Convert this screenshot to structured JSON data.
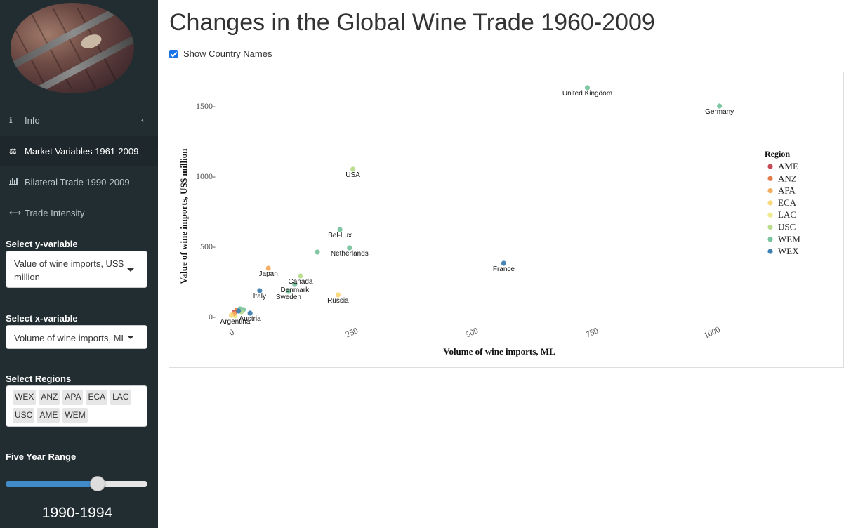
{
  "app": {
    "title": "Changes in the Global Wine Trade 1960-2009"
  },
  "sidebar": {
    "menu": [
      {
        "label": "Info",
        "icon": "info-icon",
        "glyph": "ℹ",
        "has_chevron": true,
        "chevron": "‹"
      },
      {
        "label": "Market Variables 1961-2009",
        "icon": "balance-scale-icon",
        "glyph": "⚖",
        "active": true
      },
      {
        "label": "Bilateral Trade 1990-2009",
        "icon": "bar-chart-icon",
        "glyph": "📊"
      },
      {
        "label": "Trade Intensity",
        "icon": "arrows-h-icon",
        "glyph": "⟷"
      }
    ],
    "y_variable": {
      "label": "Select y-variable",
      "value": "Value of wine imports, US$ million"
    },
    "x_variable": {
      "label": "Select x-variable",
      "value": "Volume of wine imports, ML"
    },
    "regions": {
      "label": "Select Regions",
      "selected": [
        "WEX",
        "ANZ",
        "APA",
        "ECA",
        "LAC",
        "USC",
        "AME",
        "WEM"
      ]
    },
    "year_range": {
      "label": "Five Year Range",
      "value": "1990-1994",
      "position_fraction": 0.65
    }
  },
  "main": {
    "show_country_names": {
      "label": "Show Country Names",
      "checked": true
    }
  },
  "colors": {
    "AME": "#c54b55",
    "ANZ": "#e57a4a",
    "APA": "#f4ac5e",
    "ECA": "#fad77a",
    "LAC": "#f0ea8f",
    "USC": "#b9dc8c",
    "WEM": "#78c39e",
    "WEX": "#3f80b2",
    "accent": "#428bca",
    "sidebar_bg": "#222d32"
  },
  "chart_data": {
    "type": "scatter",
    "xlabel": "Volume of wine imports, ML",
    "ylabel": "Value of wine imports, US$ million",
    "xlim": [
      -30,
      1110
    ],
    "ylim": [
      -60,
      1640
    ],
    "x_ticks": [
      0,
      250,
      500,
      750,
      1000
    ],
    "x_tick_labels": [
      "0",
      "250",
      "500",
      "750",
      "1000"
    ],
    "y_ticks": [
      0,
      500,
      1000,
      1500
    ],
    "y_tick_labels": [
      "0-",
      "500-",
      "1000-",
      "1500-"
    ],
    "legend": {
      "title": "Region",
      "position": "right",
      "entries": [
        "AME",
        "ANZ",
        "APA",
        "ECA",
        "LAC",
        "USC",
        "WEM",
        "WEX"
      ]
    },
    "points": [
      {
        "label": "United Kingdom",
        "region": "WEM",
        "x": 738,
        "y": 1630
      },
      {
        "label": "Germany",
        "region": "WEM",
        "x": 1013,
        "y": 1500
      },
      {
        "label": "USA",
        "region": "USC",
        "x": 250,
        "y": 1050
      },
      {
        "label": "Bel-Lux",
        "region": "WEM",
        "x": 223,
        "y": 620
      },
      {
        "label": "Netherlands",
        "region": "WEM",
        "x": 243,
        "y": 490
      },
      {
        "label": "",
        "region": "WEM",
        "x": 176,
        "y": 460
      },
      {
        "label": "France",
        "region": "WEX",
        "x": 564,
        "y": 380
      },
      {
        "label": "Japan",
        "region": "APA",
        "x": 74,
        "y": 345
      },
      {
        "label": "Canada",
        "region": "USC",
        "x": 141,
        "y": 290
      },
      {
        "label": "Denmark",
        "region": "WEM",
        "x": 129,
        "y": 230
      },
      {
        "label": "Sweden",
        "region": "WEM",
        "x": 116,
        "y": 180
      },
      {
        "label": "Italy",
        "region": "WEX",
        "x": 56,
        "y": 185
      },
      {
        "label": "Russia",
        "region": "ECA",
        "x": 219,
        "y": 155
      },
      {
        "label": "Austria",
        "region": "WEX",
        "x": 36,
        "y": 25
      },
      {
        "label": "Argentina",
        "region": "LAC",
        "x": 5,
        "y": 5
      },
      {
        "label": "",
        "region": "AME",
        "x": 3,
        "y": 30
      },
      {
        "label": "",
        "region": "ANZ",
        "x": 8,
        "y": 45
      },
      {
        "label": "",
        "region": "APA",
        "x": 2,
        "y": 20
      },
      {
        "label": "",
        "region": "WEM",
        "x": 15,
        "y": 55
      },
      {
        "label": "",
        "region": "WEM",
        "x": 22,
        "y": 50
      },
      {
        "label": "",
        "region": "USC",
        "x": 18,
        "y": 35
      },
      {
        "label": "",
        "region": "WEX",
        "x": 12,
        "y": 40
      },
      {
        "label": "",
        "region": "ECA",
        "x": -3,
        "y": 10
      }
    ]
  }
}
